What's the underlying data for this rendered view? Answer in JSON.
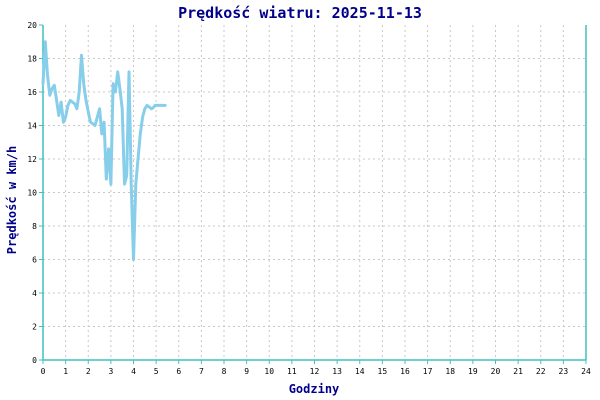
{
  "chart_data": {
    "type": "line",
    "title": "Prędkość wiatru: 2025-11-13",
    "xlabel": "Godziny",
    "ylabel": "Prędkość w km/h",
    "xlim": [
      0,
      24
    ],
    "ylim": [
      0,
      20
    ],
    "x_ticks": [
      "0",
      "1",
      "2",
      "3",
      "4",
      "5",
      "6",
      "7",
      "8",
      "9",
      "10",
      "11",
      "12",
      "13",
      "14",
      "15",
      "16",
      "17",
      "18",
      "19",
      "20",
      "21",
      "22",
      "23",
      "24"
    ],
    "y_ticks": [
      "0",
      "2",
      "4",
      "6",
      "8",
      "10",
      "12",
      "14",
      "16",
      "18",
      "20"
    ],
    "grid": true,
    "colors": {
      "series": "#87ceeb",
      "axis": "#40c0c0",
      "title": "#00008b",
      "grid": "#c8c8c8"
    },
    "series": [
      {
        "x": [
          0.0,
          0.1,
          0.2,
          0.3,
          0.4,
          0.5,
          0.6,
          0.7,
          0.8,
          0.9,
          1.0,
          1.1,
          1.2,
          1.3,
          1.4,
          1.5,
          1.6,
          1.7,
          1.8,
          1.9,
          2.0,
          2.05,
          2.1,
          2.2,
          2.3,
          2.4,
          2.5,
          2.6,
          2.7,
          2.8,
          2.9,
          3.0,
          3.1,
          3.2,
          3.3,
          3.4,
          3.5,
          3.6,
          3.7,
          3.8,
          3.85,
          3.9,
          4.0,
          4.1,
          4.2,
          4.3,
          4.4,
          4.5,
          4.6,
          4.7,
          4.8,
          4.9,
          4.95,
          5.0,
          5.05,
          5.1,
          5.2,
          5.3,
          5.4
        ],
        "y": [
          16.5,
          19.0,
          17.0,
          15.8,
          16.2,
          16.4,
          15.5,
          14.6,
          15.4,
          14.2,
          14.5,
          15.2,
          15.5,
          15.4,
          15.3,
          15.0,
          16.0,
          18.2,
          16.5,
          15.5,
          14.8,
          14.5,
          14.2,
          14.1,
          14.0,
          14.5,
          15.0,
          13.5,
          14.2,
          10.8,
          12.6,
          10.5,
          16.5,
          16.0,
          17.2,
          16.2,
          15.0,
          10.5,
          11.0,
          17.2,
          14.0,
          10.5,
          6.0,
          10.5,
          12.0,
          13.5,
          14.5,
          15.0,
          15.2,
          15.1,
          15.0,
          15.1,
          15.2,
          15.2,
          15.2,
          15.2,
          15.2,
          15.2,
          15.2
        ]
      }
    ]
  }
}
